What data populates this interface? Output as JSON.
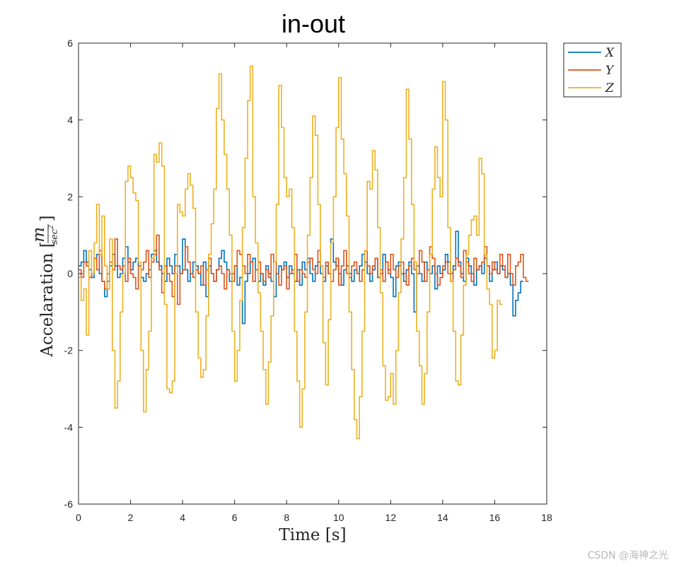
{
  "chart_data": {
    "type": "line",
    "title": "in-out",
    "xlabel": "Time [s]",
    "ylabel": "Accelaration [",
    "ylabel_fraction": {
      "numerator": "m",
      "denominator": "sec"
    },
    "ylabel_close": "]",
    "xlim": [
      0,
      18
    ],
    "ylim": [
      -6,
      6
    ],
    "xticks": [
      "0",
      "2",
      "4",
      "6",
      "8",
      "10",
      "12",
      "14",
      "16",
      "18"
    ],
    "yticks": [
      "-6",
      "-4",
      "-2",
      "0",
      "2",
      "4",
      "6"
    ],
    "grid": false,
    "legend_position": "outside top-right",
    "dt": 0.1,
    "series": [
      {
        "name": "X",
        "color": "#0072BD",
        "values": [
          0.2,
          0.3,
          0.6,
          0.3,
          0.1,
          -0.1,
          0.4,
          0.5,
          0.0,
          -0.2,
          -0.6,
          -0.2,
          0.2,
          0.5,
          0.2,
          -0.1,
          0.0,
          0.4,
          0.7,
          0.3,
          0.1,
          0.3,
          0.4,
          0.2,
          -0.1,
          -0.2,
          0.0,
          0.1,
          0.5,
          0.6,
          0.3,
          0.2,
          0.0,
          -0.2,
          0.4,
          0.2,
          0.0,
          0.5,
          0.2,
          0.0,
          0.9,
          0.1,
          -0.2,
          0.0,
          0.3,
          0.2,
          0.0,
          -0.3,
          0.3,
          -0.6,
          0.2,
          0.0,
          -0.2,
          0.1,
          0.4,
          0.6,
          0.3,
          0.1,
          -0.2,
          0.0,
          0.2,
          -0.3,
          -0.1,
          -1.3,
          -0.2,
          0.0,
          0.3,
          0.4,
          0.1,
          -0.2,
          0.0,
          -0.3,
          0.2,
          0.0,
          -0.2,
          -0.6,
          0.0,
          0.2,
          0.1,
          0.3,
          -0.1,
          0.2,
          0.0,
          -0.2,
          0.1,
          -0.3,
          0.3,
          0.1,
          0.4,
          0.0,
          -0.2,
          0.2,
          0.3,
          0.0,
          -0.2,
          0.2,
          0.0,
          0.9,
          0.3,
          0.2,
          0.0,
          -0.3,
          0.1,
          0.2,
          0.0,
          -0.2,
          0.1,
          0.0,
          0.2,
          0.5,
          0.3,
          0.0,
          -0.2,
          0.1,
          0.4,
          -0.1,
          0.0,
          0.5,
          0.3,
          0.1,
          -0.1,
          -0.6,
          0.2,
          0.3,
          0.0,
          -0.2,
          0.1,
          0.3,
          0.0,
          -1.0,
          0.2,
          0.0,
          -0.2,
          0.3,
          0.1,
          0.0,
          0.2,
          -0.4,
          0.2,
          0.0,
          0.1,
          0.5,
          0.3,
          0.0,
          0.2,
          1.1,
          0.3,
          0.0,
          -0.2,
          0.4,
          0.2,
          0.0,
          -0.3,
          0.1,
          0.2,
          0.0,
          0.4,
          0.2,
          -0.2,
          0.1,
          0.3,
          0.0,
          0.2,
          0.1,
          -0.1,
          0.0,
          -0.3,
          -1.1,
          -0.7,
          -0.5,
          -0.2
        ]
      },
      {
        "name": "Y",
        "color": "#D95319",
        "values": [
          0.1,
          -0.1,
          0.3,
          0.2,
          -0.1,
          0.0,
          0.4,
          0.1,
          0.6,
          -0.2,
          -0.4,
          0.0,
          0.3,
          0.1,
          0.9,
          0.2,
          0.1,
          0.2,
          -0.2,
          0.4,
          0.0,
          -0.1,
          -0.4,
          0.2,
          0.1,
          0.3,
          0.6,
          -0.1,
          0.3,
          0.5,
          1.0,
          0.1,
          -0.5,
          0.2,
          0.0,
          -0.2,
          -0.6,
          0.2,
          -0.8,
          0.0,
          0.1,
          0.7,
          0.3,
          0.0,
          -0.1,
          0.1,
          0.0,
          0.2,
          -0.3,
          0.1,
          0.4,
          0.0,
          -0.2,
          0.1,
          0.2,
          0.0,
          -0.4,
          0.1,
          0.0,
          -0.2,
          0.2,
          0.6,
          0.5,
          0.2,
          0.0,
          0.5,
          0.3,
          -0.2,
          0.1,
          0.3,
          0.0,
          -0.2,
          0.1,
          -0.1,
          0.5,
          0.3,
          0.0,
          -0.3,
          0.1,
          0.2,
          -0.4,
          0.0,
          0.1,
          0.5,
          -0.2,
          0.1,
          0.0,
          -0.1,
          0.3,
          0.4,
          0.1,
          0.0,
          0.6,
          0.2,
          -0.1,
          0.3,
          0.0,
          -0.2,
          0.1,
          0.4,
          -0.3,
          0.2,
          0.6,
          0.0,
          -0.1,
          0.2,
          0.3,
          0.0,
          -0.2,
          0.1,
          0.6,
          0.2,
          0.0,
          0.2,
          0.4,
          -0.1,
          0.1,
          -0.2,
          0.3,
          0.0,
          0.5,
          0.1,
          -0.1,
          0.2,
          0.3,
          0.0,
          -0.3,
          0.2,
          0.4,
          0.1,
          0.0,
          0.6,
          0.3,
          -0.2,
          0.1,
          0.7,
          0.4,
          0.0,
          -0.3,
          -0.1,
          0.2,
          0.3,
          0.0,
          -0.2,
          0.1,
          0.4,
          0.2,
          -0.1,
          0.6,
          0.3,
          0.0,
          -0.2,
          0.4,
          0.1,
          0.2,
          0.3,
          0.7,
          0.2,
          0.0,
          0.3,
          0.1,
          0.0,
          0.5,
          0.2,
          -0.1,
          0.5,
          0.0,
          -0.3,
          0.2,
          0.3,
          0.5,
          -0.1,
          -0.2
        ]
      },
      {
        "name": "Z",
        "color": "#EDB120",
        "values": [
          -0.1,
          -0.7,
          -0.4,
          -1.6,
          0.6,
          0.0,
          0.8,
          1.8,
          0.5,
          1.5,
          0.2,
          -0.4,
          0.9,
          -2.0,
          -3.5,
          -2.8,
          -1.0,
          0.0,
          2.4,
          2.8,
          2.5,
          2.1,
          1.9,
          0.3,
          -2.0,
          -3.6,
          -2.5,
          -1.5,
          0.4,
          3.1,
          2.9,
          3.4,
          2.8,
          -0.8,
          -3.0,
          -3.1,
          -2.8,
          0.0,
          1.8,
          1.6,
          1.5,
          2.2,
          2.6,
          2.3,
          1.7,
          -1.0,
          -2.2,
          -2.7,
          -2.5,
          -1.1,
          0.5,
          1.3,
          2.2,
          4.3,
          5.2,
          4.0,
          3.1,
          2.2,
          1.0,
          -1.5,
          -2.8,
          -2.0,
          -0.7,
          1.2,
          3.0,
          4.5,
          5.4,
          2.0,
          0.8,
          -0.5,
          -1.5,
          -2.5,
          -3.4,
          -2.3,
          -1.1,
          0.3,
          1.8,
          4.9,
          3.8,
          2.5,
          2.0,
          2.2,
          1.2,
          -1.5,
          -2.8,
          -4.0,
          -3.0,
          -1.0,
          1.0,
          2.5,
          4.1,
          3.6,
          1.8,
          0.2,
          -1.8,
          -2.9,
          -1.2,
          0.8,
          2.0,
          3.8,
          5.1,
          3.5,
          2.6,
          1.5,
          -1.0,
          -2.5,
          -3.8,
          -4.3,
          -3.2,
          -1.5,
          0.6,
          2.4,
          2.2,
          3.2,
          2.7,
          1.2,
          -0.5,
          -2.4,
          -3.3,
          -3.2,
          -2.6,
          -3.4,
          -2.0,
          -0.5,
          0.9,
          2.5,
          4.8,
          3.5,
          1.8,
          0.3,
          -1.5,
          -2.4,
          -3.4,
          -2.6,
          -1.0,
          0.5,
          2.2,
          3.3,
          2.5,
          2.0,
          5.0,
          4.0,
          1.2,
          -0.2,
          -1.5,
          -2.8,
          -2.9,
          -1.6,
          -0.3,
          0.5,
          1.0,
          1.4,
          1.5,
          1.0,
          3.0,
          2.6,
          0.5,
          -0.4,
          -0.8,
          -2.2,
          -2.0,
          -0.7,
          -0.8
        ]
      }
    ]
  },
  "watermark": "CSDN @海神之光"
}
